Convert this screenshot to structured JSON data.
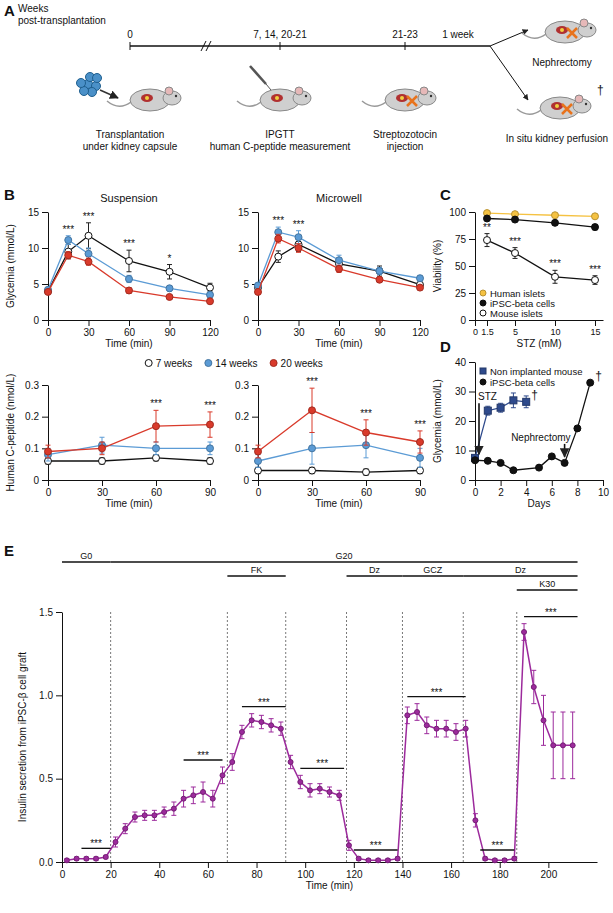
{
  "diagram": {
    "panel_label": "A",
    "axis_label": [
      "Weeks",
      "post-transplantation"
    ],
    "steps": [
      {
        "time": "0",
        "label": [
          "Transplantation",
          "under kidney capsule"
        ]
      },
      {
        "time": "7, 14, 20-21",
        "label": [
          "IPGTT",
          "human C-peptide measurement"
        ]
      },
      {
        "time": "21-23",
        "label": [
          "Streptozotocin",
          "injection"
        ]
      },
      {
        "time": "1 week"
      }
    ],
    "outcomes": [
      {
        "label": "Nephrectomy"
      },
      {
        "label": "In situ kidney perfusion",
        "mark": "†"
      }
    ]
  },
  "chart_data": [
    {
      "panel_label": "B",
      "type": "line",
      "title": "Suspension",
      "x_label": "Time (min)",
      "y_label": "Glycemia (mmol/L)",
      "x": [
        0,
        15,
        30,
        60,
        90,
        120
      ],
      "xlim": [
        0,
        120
      ],
      "xticks": [
        0,
        30,
        60,
        90,
        120
      ],
      "ylim": [
        0,
        15
      ],
      "yticks": [
        0,
        5,
        10,
        15
      ],
      "legend": "bottom",
      "series": [
        {
          "name": "7 weeks",
          "color": "#ffffff",
          "marker": "circle",
          "values": [
            4.0,
            9.5,
            11.7,
            8.2,
            6.7,
            4.5
          ],
          "errors": [
            0.3,
            1.0,
            1.8,
            1.5,
            1.0,
            0.6
          ]
        },
        {
          "name": "14 weeks",
          "color": "#5b9bd5",
          "marker": "circle",
          "values": [
            4.2,
            11.1,
            9.2,
            5.7,
            4.4,
            3.5
          ],
          "errors": [
            0.3,
            0.6,
            0.8,
            0.5,
            0.4,
            0.3
          ]
        },
        {
          "name": "20 weeks",
          "color": "#d93a2b",
          "marker": "circle",
          "values": [
            3.9,
            9.0,
            8.1,
            4.1,
            3.2,
            2.6
          ],
          "errors": [
            0.2,
            0.5,
            0.5,
            0.4,
            0.3,
            0.2
          ]
        }
      ],
      "significance": [
        {
          "x": 15,
          "text": "***"
        },
        {
          "x": 30,
          "text": "***"
        },
        {
          "x": 60,
          "text": "***"
        },
        {
          "x": 90,
          "text": "*"
        }
      ]
    },
    {
      "type": "line",
      "title": "Microwell",
      "x_label": "Time (min)",
      "x": [
        0,
        15,
        30,
        60,
        90,
        120
      ],
      "xlim": [
        0,
        120
      ],
      "xticks": [
        0,
        30,
        60,
        90,
        120
      ],
      "ylim": [
        0,
        15
      ],
      "yticks": [
        0,
        5,
        10,
        15
      ],
      "series": [
        {
          "color": "#ffffff",
          "marker": "circle",
          "values": [
            4.5,
            8.8,
            10.5,
            7.8,
            6.8,
            4.9
          ],
          "errors": [
            0.3,
            0.8,
            1.0,
            0.8,
            0.7,
            0.5
          ]
        },
        {
          "color": "#5b9bd5",
          "marker": "circle",
          "values": [
            4.8,
            12.2,
            11.5,
            8.3,
            6.8,
            5.8
          ],
          "errors": [
            0.3,
            0.7,
            0.9,
            0.7,
            0.5,
            0.4
          ]
        },
        {
          "color": "#d93a2b",
          "marker": "circle",
          "values": [
            3.9,
            11.3,
            10.0,
            7.1,
            5.6,
            4.5
          ],
          "errors": [
            0.3,
            0.6,
            0.6,
            0.5,
            0.4,
            0.3
          ]
        }
      ],
      "significance": [
        {
          "x": 15,
          "text": "***"
        },
        {
          "x": 30,
          "text": "***"
        }
      ]
    },
    {
      "type": "line",
      "x_label": "Time (min)",
      "y_label": "Human C-peptide (nmol/L)",
      "x": [
        0,
        30,
        60,
        90
      ],
      "xlim": [
        0,
        90
      ],
      "xticks": [
        0,
        30,
        60,
        90
      ],
      "ylim": [
        0,
        0.3
      ],
      "yticks": [
        0,
        0.1,
        0.2,
        0.3
      ],
      "series": [
        {
          "color": "#ffffff",
          "marker": "circle",
          "values": [
            0.06,
            0.06,
            0.07,
            0.06
          ],
          "errors": [
            0.01,
            0.01,
            0.01,
            0.01
          ]
        },
        {
          "color": "#5b9bd5",
          "marker": "circle",
          "values": [
            0.08,
            0.11,
            0.1,
            0.1
          ],
          "errors": [
            0.02,
            0.025,
            0.02,
            0.02
          ]
        },
        {
          "color": "#d93a2b",
          "marker": "circle",
          "values": [
            0.09,
            0.1,
            0.17,
            0.175
          ],
          "errors": [
            0.02,
            0.02,
            0.05,
            0.04
          ]
        }
      ],
      "significance": [
        {
          "x": 60,
          "text": "***"
        },
        {
          "x": 90,
          "text": "***"
        }
      ]
    },
    {
      "type": "line",
      "x_label": "Time (min)",
      "x": [
        0,
        30,
        60,
        90
      ],
      "xlim": [
        0,
        90
      ],
      "xticks": [
        0,
        30,
        60,
        90
      ],
      "ylim": [
        0,
        0.3
      ],
      "yticks": [
        0,
        0.1,
        0.2,
        0.3
      ],
      "series": [
        {
          "color": "#ffffff",
          "marker": "circle",
          "values": [
            0.03,
            0.03,
            0.025,
            0.03
          ],
          "errors": [
            0.01,
            0.01,
            0.01,
            0.01
          ]
        },
        {
          "color": "#5b9bd5",
          "marker": "circle",
          "values": [
            0.06,
            0.1,
            0.11,
            0.07
          ],
          "errors": [
            0.02,
            0.05,
            0.04,
            0.03
          ]
        },
        {
          "color": "#d93a2b",
          "marker": "circle",
          "values": [
            0.09,
            0.22,
            0.15,
            0.12
          ],
          "errors": [
            0.02,
            0.07,
            0.04,
            0.035
          ]
        }
      ],
      "significance": [
        {
          "x": 30,
          "text": "***"
        },
        {
          "x": 60,
          "text": "***"
        },
        {
          "x": 90,
          "text": "***"
        }
      ]
    },
    {
      "panel_label": "C",
      "type": "line",
      "x_label": "STZ (mM)",
      "y_label": "Viability (%)",
      "x": [
        1.5,
        5,
        10,
        15
      ],
      "xlim": [
        0,
        16
      ],
      "xticks": [
        0,
        1.5,
        5,
        10,
        15
      ],
      "ylim": [
        0,
        100
      ],
      "yticks": [
        0,
        25,
        50,
        75,
        100
      ],
      "legend": "lower left",
      "series": [
        {
          "name": "Human islets",
          "color": "#f5c242",
          "marker": "circle",
          "values": [
            99,
            98,
            97,
            96
          ],
          "errors": [
            1,
            1,
            1,
            1.5
          ]
        },
        {
          "name": "iPSC-beta cells",
          "color": "#111111",
          "marker": "circle",
          "values": [
            94,
            93,
            90,
            86
          ],
          "errors": [
            1.5,
            1.5,
            2,
            2.5
          ]
        },
        {
          "name": "Mouse islets",
          "color": "#ffffff",
          "marker": "circle",
          "values": [
            74,
            62,
            40,
            37
          ],
          "errors": [
            6,
            5,
            6,
            4
          ]
        }
      ],
      "significance": [
        {
          "x": 1.5,
          "text": "**",
          "series": 2
        },
        {
          "x": 5,
          "text": "***",
          "series": 2
        },
        {
          "x": 10,
          "text": "***",
          "series": 2
        },
        {
          "x": 15,
          "text": "***",
          "series": 2
        }
      ]
    },
    {
      "panel_label": "D",
      "type": "line",
      "x_label": "Days",
      "y_label": "Glycemia (mmol/L)",
      "xlim": [
        0,
        10
      ],
      "xticks": [
        0,
        2,
        4,
        6,
        8,
        10
      ],
      "ylim": [
        0,
        40
      ],
      "yticks": [
        0,
        10,
        20,
        30,
        40
      ],
      "legend": "upper left",
      "series": [
        {
          "name": "Non implanted mouse",
          "color": "#2e4a8c",
          "marker": "square",
          "x": [
            0,
            1,
            2,
            3,
            4
          ],
          "values": [
            7.5,
            23.5,
            24.5,
            27,
            26.5
          ],
          "errors": [
            0.5,
            1.5,
            1.5,
            2.5,
            2
          ],
          "end_label": "†"
        },
        {
          "name": "iPSC-beta cells",
          "color": "#111111",
          "marker": "circle",
          "x": [
            0,
            1,
            2,
            3,
            5,
            6,
            7,
            8,
            9
          ],
          "values": [
            6.7,
            6.5,
            5.8,
            3.3,
            4.2,
            8,
            5.8,
            17.5,
            33
          ],
          "end_label": "†"
        }
      ],
      "events": [
        {
          "x": 0,
          "text": "STZ"
        },
        {
          "x": 7,
          "text": "Nephrectomy"
        }
      ]
    },
    {
      "panel_label": "E",
      "type": "line",
      "x_label": "Time (min)",
      "y_label": "Insulin secretion from iPSC-β cell graft",
      "x": [
        2,
        6,
        10,
        14,
        18,
        22,
        26,
        30,
        34,
        38,
        42,
        46,
        50,
        54,
        58,
        62,
        66,
        70,
        74,
        78,
        82,
        86,
        90,
        94,
        98,
        102,
        106,
        110,
        114,
        118,
        122,
        126,
        130,
        134,
        138,
        142,
        146,
        150,
        154,
        158,
        162,
        166,
        170,
        174,
        178,
        182,
        186,
        190,
        194,
        198,
        202,
        206,
        210
      ],
      "xlim": [
        0,
        220
      ],
      "xticks": [
        0,
        20,
        40,
        60,
        80,
        100,
        120,
        140,
        160,
        180,
        200
      ],
      "ylim": [
        0,
        1.5
      ],
      "yticks": [
        {
          "value": 0,
          "label": "0.0"
        },
        0.5,
        {
          "value": 1,
          "label": "1.0"
        },
        1.5
      ],
      "series": [
        {
          "color": "#9c2a9c",
          "marker": "circle",
          "values": [
            0.01,
            0.02,
            0.02,
            0.02,
            0.03,
            0.12,
            0.2,
            0.27,
            0.28,
            0.28,
            0.3,
            0.32,
            0.38,
            0.4,
            0.42,
            0.38,
            0.52,
            0.6,
            0.78,
            0.85,
            0.84,
            0.82,
            0.8,
            0.6,
            0.48,
            0.43,
            0.44,
            0.42,
            0.4,
            0.1,
            0.02,
            0.01,
            0.01,
            0.01,
            0.02,
            0.88,
            0.9,
            0.82,
            0.8,
            0.8,
            0.78,
            0.8,
            0.25,
            0.02,
            0.01,
            0.01,
            0.02,
            1.38,
            1.05,
            0.85,
            0.7,
            0.7,
            0.7
          ],
          "errors": [
            0.01,
            0.01,
            0.01,
            0.01,
            0.01,
            0.03,
            0.03,
            0.03,
            0.03,
            0.03,
            0.03,
            0.04,
            0.05,
            0.05,
            0.06,
            0.05,
            0.05,
            0.05,
            0.04,
            0.04,
            0.04,
            0.04,
            0.04,
            0.04,
            0.04,
            0.04,
            0.03,
            0.03,
            0.03,
            0.03,
            0.01,
            0.01,
            0.01,
            0.01,
            0.01,
            0.05,
            0.05,
            0.05,
            0.05,
            0.05,
            0.05,
            0.05,
            0.04,
            0.01,
            0.01,
            0.01,
            0.01,
            0.05,
            0.1,
            0.15,
            0.2,
            0.2,
            0.2
          ]
        }
      ],
      "conditions": [
        {
          "label": "G0",
          "start": 0,
          "end": 20
        },
        {
          "label": "G20",
          "start": 20,
          "end": 212
        },
        {
          "label": "FK",
          "start": 68,
          "end": 92
        },
        {
          "label": "Dz",
          "start": 117,
          "end": 140
        },
        {
          "label": "GCZ",
          "start": 140,
          "end": 165
        },
        {
          "label": "Dz",
          "start": 165,
          "end": 212
        },
        {
          "label": "K30",
          "start": 187,
          "end": 212
        }
      ],
      "significance": [
        {
          "x0": 8,
          "x1": 20,
          "text": "***"
        },
        {
          "x0": 50,
          "x1": 66,
          "text": "***"
        },
        {
          "x0": 74,
          "x1": 92,
          "text": "***"
        },
        {
          "x0": 98,
          "x1": 116,
          "text": "***"
        },
        {
          "x0": 120,
          "x1": 138,
          "text": "***"
        },
        {
          "x0": 142,
          "x1": 166,
          "text": "***"
        },
        {
          "x0": 172,
          "x1": 186,
          "text": "***"
        },
        {
          "x0": 190,
          "x1": 212,
          "text": "***"
        }
      ]
    }
  ]
}
